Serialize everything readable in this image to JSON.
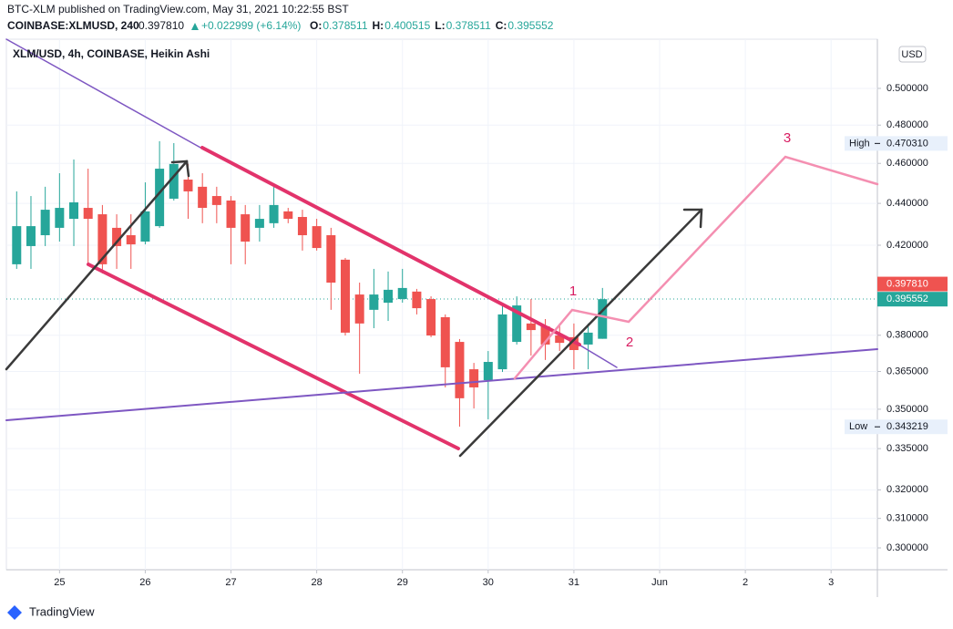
{
  "header": {
    "publisher": "BTC-XLM published on TradingView.com, May 31, 2021 10:22:55 BST",
    "symbol": "COINBASE:XLMUSD, 240",
    "price": "0.397810",
    "change": "+0.022999 (+6.14%)",
    "ohlc": [
      {
        "key": "O:",
        "value": "0.378511"
      },
      {
        "key": "H:",
        "value": "0.400515"
      },
      {
        "key": "L:",
        "value": "0.378511"
      },
      {
        "key": "C:",
        "value": "0.395552"
      }
    ]
  },
  "chart_data": {
    "type": "candlestick",
    "title": "XLM/USD, 4h, COINBASE, Heikin Ashi",
    "currency": "USD",
    "x": [
      24.5,
      24.6667,
      24.8333,
      25,
      25.1667,
      25.3333,
      25.5,
      25.6667,
      25.8333,
      26,
      26.1667,
      26.3333,
      26.5,
      26.6667,
      26.8333,
      27,
      27.1667,
      27.3333,
      27.5,
      27.6667,
      27.8333,
      28,
      28.1667,
      28.3333,
      28.5,
      28.6667,
      28.8333,
      29,
      29.1667,
      29.3333,
      29.5,
      29.6667,
      29.8333,
      30,
      30.1667,
      30.3333,
      30.5,
      30.6667,
      30.8333,
      31,
      31.1667,
      31.3333
    ],
    "open": [
      0.4112,
      0.4196,
      0.4247,
      0.4282,
      0.4325,
      0.4378,
      0.4347,
      0.4282,
      0.4247,
      0.4217,
      0.429,
      0.4423,
      0.4518,
      0.4482,
      0.4436,
      0.4414,
      0.4347,
      0.4282,
      0.4304,
      0.4361,
      0.4334,
      0.429,
      0.4247,
      0.4133,
      0.3976,
      0.3909,
      0.394,
      0.3956,
      0.3989,
      0.3956,
      0.3877,
      0.3772,
      0.3659,
      0.3615,
      0.3659,
      0.3772,
      0.385,
      0.3838,
      0.3799,
      0.3792,
      0.3761,
      0.378511
    ],
    "high": [
      0.4459,
      0.4436,
      0.4482,
      0.455,
      0.462,
      0.4573,
      0.4392,
      0.4347,
      0.4347,
      0.4504,
      0.4715,
      0.4705,
      0.4597,
      0.455,
      0.4482,
      0.4436,
      0.4392,
      0.4392,
      0.4482,
      0.4378,
      0.4369,
      0.4325,
      0.4282,
      0.4141,
      0.4029,
      0.4091,
      0.4079,
      0.4091,
      0.4001,
      0.3968,
      0.3889,
      0.3784,
      0.3685,
      0.3734,
      0.394,
      0.3968,
      0.3956,
      0.3869,
      0.385,
      0.385,
      0.385,
      0.400515
    ],
    "low": [
      0.4091,
      0.4091,
      0.4196,
      0.4217,
      0.4196,
      0.4112,
      0.407,
      0.4091,
      0.4091,
      0.4204,
      0.4282,
      0.4414,
      0.4325,
      0.4304,
      0.4304,
      0.4112,
      0.4112,
      0.4217,
      0.4282,
      0.4304,
      0.4175,
      0.4175,
      0.3909,
      0.3799,
      0.3641,
      0.383,
      0.3861,
      0.394,
      0.3889,
      0.3792,
      0.3586,
      0.3433,
      0.3503,
      0.3461,
      0.3648,
      0.3761,
      0.3715,
      0.3697,
      0.3734,
      0.3659,
      0.3659,
      0.378511
    ],
    "close": [
      0.429,
      0.429,
      0.4369,
      0.4378,
      0.4405,
      0.4325,
      0.4112,
      0.4196,
      0.4204,
      0.4361,
      0.4573,
      0.4597,
      0.4459,
      0.4378,
      0.4392,
      0.4282,
      0.4217,
      0.4325,
      0.4392,
      0.4325,
      0.4247,
      0.4187,
      0.4029,
      0.3811,
      0.385,
      0.3976,
      0.3997,
      0.4005,
      0.3916,
      0.3799,
      0.3667,
      0.3543,
      0.3586,
      0.3689,
      0.3889,
      0.3928,
      0.3822,
      0.3761,
      0.3768,
      0.3738,
      0.3811,
      0.395552
    ],
    "up_color": "#26a69a",
    "down_color": "#ef5350",
    "log_scale": true,
    "xlim": [
      24.38,
      34.54
    ],
    "xticks": [
      25,
      26,
      27,
      28,
      29,
      30,
      31,
      {
        "value": 32,
        "label": "Jun"
      },
      {
        "value": 33,
        "label": "2"
      },
      {
        "value": 34,
        "label": "3"
      }
    ],
    "ylim": [
      0.2928,
      0.5281
    ],
    "yticks": [
      {
        "value": 0.5,
        "label": "0.500000"
      },
      {
        "value": 0.48,
        "label": "0.480000"
      },
      {
        "value": 0.46,
        "label": "0.460000"
      },
      {
        "value": 0.44,
        "label": "0.440000"
      },
      {
        "value": 0.42,
        "label": "0.420000"
      },
      {
        "value": 0.38,
        "label": "0.380000"
      },
      {
        "value": 0.365,
        "label": "0.365000"
      },
      {
        "value": 0.35,
        "label": "0.350000"
      },
      {
        "value": 0.335,
        "label": "0.335000"
      },
      {
        "value": 0.32,
        "label": "0.320000"
      },
      {
        "value": 0.31,
        "label": "0.310000"
      },
      {
        "value": 0.3,
        "label": "0.300000"
      }
    ],
    "price_labels": [
      {
        "value": 0.39781,
        "label": "0.397810",
        "color": "#ef5350"
      },
      {
        "value": 0.395552,
        "label": "0.395552",
        "color": "#26a69a"
      }
    ],
    "extremes": [
      {
        "name": "High",
        "value": 0.47031,
        "label": "0.470310"
      },
      {
        "name": "Low",
        "value": 0.343219,
        "label": "0.343219"
      }
    ],
    "annotations": [
      "1",
      "2",
      "3"
    ]
  },
  "footer": {
    "brand": "TradingView"
  }
}
